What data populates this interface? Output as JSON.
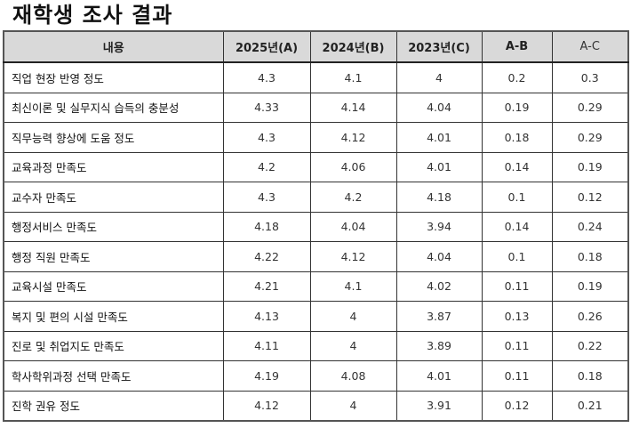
{
  "title": "재학생 조사 결과",
  "table": {
    "headers": [
      "내용",
      "2025년(A)",
      "2024년(B)",
      "2023년(C)",
      "A-B",
      "A-C"
    ],
    "rows": [
      {
        "item": "직업 현장 반영 정도",
        "y2025": "4.3",
        "y2024": "4.1",
        "y2023": "4",
        "a_b": "0.2",
        "a_c": "0.3"
      },
      {
        "item": "최신이론 및 실무지식 습득의 충분성",
        "y2025": "4.33",
        "y2024": "4.14",
        "y2023": "4.04",
        "a_b": "0.19",
        "a_c": "0.29"
      },
      {
        "item": "직무능력 향상에 도움 정도",
        "y2025": "4.3",
        "y2024": "4.12",
        "y2023": "4.01",
        "a_b": "0.18",
        "a_c": "0.29"
      },
      {
        "item": "교육과정 만족도",
        "y2025": "4.2",
        "y2024": "4.06",
        "y2023": "4.01",
        "a_b": "0.14",
        "a_c": "0.19"
      },
      {
        "item": "교수자 만족도",
        "y2025": "4.3",
        "y2024": "4.2",
        "y2023": "4.18",
        "a_b": "0.1",
        "a_c": "0.12"
      },
      {
        "item": "행정서비스 만족도",
        "y2025": "4.18",
        "y2024": "4.04",
        "y2023": "3.94",
        "a_b": "0.14",
        "a_c": "0.24"
      },
      {
        "item": "행정 직원 만족도",
        "y2025": "4.22",
        "y2024": "4.12",
        "y2023": "4.04",
        "a_b": "0.1",
        "a_c": "0.18"
      },
      {
        "item": "교육시설 만족도",
        "y2025": "4.21",
        "y2024": "4.1",
        "y2023": "4.02",
        "a_b": "0.11",
        "a_c": "0.19"
      },
      {
        "item": "복지 및 편의 시설 만족도",
        "y2025": "4.13",
        "y2024": "4",
        "y2023": "3.87",
        "a_b": "0.13",
        "a_c": "0.26"
      },
      {
        "item": "진로 및 취업지도 만족도",
        "y2025": "4.11",
        "y2024": "4",
        "y2023": "3.89",
        "a_b": "0.11",
        "a_c": "0.22"
      },
      {
        "item": "학사학위과정 선택 만족도",
        "y2025": "4.19",
        "y2024": "4.08",
        "y2023": "4.01",
        "a_b": "0.11",
        "a_c": "0.18"
      },
      {
        "item": "진학 권유 정도",
        "y2025": "4.12",
        "y2024": "4",
        "y2023": "3.91",
        "a_b": "0.12",
        "a_c": "0.21"
      }
    ]
  },
  "colors": {
    "header_bg": "#d9d9d9",
    "border": "#333333",
    "text": "#111111"
  }
}
